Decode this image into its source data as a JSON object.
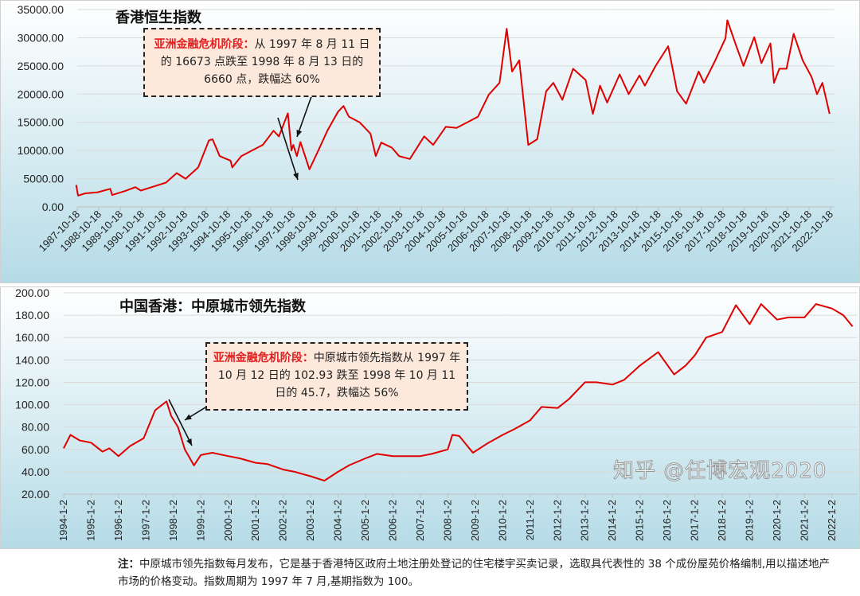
{
  "colors": {
    "line": "#e00000",
    "annotation_bg": "#fde9dc",
    "highlight": "#e02020",
    "bg_top": "#ffffff",
    "bg_bottom": "#b5dbe7"
  },
  "chart_data": [
    {
      "type": "line",
      "title": "香港恒生指数",
      "ylim": [
        0,
        35000
      ],
      "yticks": [
        "0.00",
        "5000.00",
        "10000.00",
        "15000.00",
        "20000.00",
        "25000.00",
        "30000.00",
        "35000.00"
      ],
      "ytick_values": [
        0,
        5000,
        10000,
        15000,
        20000,
        25000,
        30000,
        35000
      ],
      "xticks": [
        "1987-10-18",
        "1988-10-18",
        "1989-10-18",
        "1990-10-18",
        "1991-10-18",
        "1992-10-18",
        "1993-10-18",
        "1994-10-18",
        "1995-10-18",
        "1996-10-18",
        "1997-10-18",
        "1998-10-18",
        "1999-10-18",
        "2000-10-18",
        "2001-10-18",
        "2002-10-18",
        "2003-10-18",
        "2004-10-18",
        "2005-10-18",
        "2006-10-18",
        "2007-10-18",
        "2008-10-18",
        "2009-10-18",
        "2010-10-18",
        "2011-10-18",
        "2012-10-18",
        "2013-10-18",
        "2014-10-18",
        "2015-10-18",
        "2016-10-18",
        "2017-10-18",
        "2018-10-18",
        "2019-10-18",
        "2020-10-18",
        "2021-10-18",
        "2022-10-18"
      ],
      "grid": true,
      "annotation": {
        "highlight": "亚洲金融危机阶段：",
        "text": "从 1997 年 8 月 11 日的 16673 点跌至 1998 年 8 月 13 日的 6660 点，跌幅达 60%"
      },
      "series": [
        {
          "points": [
            [
              "1987-10",
              3900
            ],
            [
              "1987-11",
              2000
            ],
            [
              "1988-03",
              2400
            ],
            [
              "1988-10",
              2600
            ],
            [
              "1989-05",
              3200
            ],
            [
              "1989-06",
              2100
            ],
            [
              "1990-01",
              2800
            ],
            [
              "1990-07",
              3500
            ],
            [
              "1990-10",
              2900
            ],
            [
              "1991-03",
              3400
            ],
            [
              "1991-12",
              4300
            ],
            [
              "1992-06",
              6000
            ],
            [
              "1992-11",
              5000
            ],
            [
              "1993-06",
              7000
            ],
            [
              "1993-12",
              11800
            ],
            [
              "1994-02",
              12000
            ],
            [
              "1994-06",
              9000
            ],
            [
              "1994-12",
              8200
            ],
            [
              "1995-01",
              7000
            ],
            [
              "1995-06",
              9000
            ],
            [
              "1995-12",
              10000
            ],
            [
              "1996-06",
              11000
            ],
            [
              "1996-12",
              13500
            ],
            [
              "1997-03",
              12500
            ],
            [
              "1997-08",
              16600
            ],
            [
              "1997-10",
              10000
            ],
            [
              "1997-11",
              11000
            ],
            [
              "1998-01",
              9000
            ],
            [
              "1998-03",
              11500
            ],
            [
              "1998-08",
              6660
            ],
            [
              "1999-01",
              10000
            ],
            [
              "1999-06",
              13500
            ],
            [
              "1999-12",
              16900
            ],
            [
              "2000-03",
              17900
            ],
            [
              "2000-06",
              16000
            ],
            [
              "2000-12",
              15000
            ],
            [
              "2001-06",
              13000
            ],
            [
              "2001-09",
              9000
            ],
            [
              "2001-12",
              11400
            ],
            [
              "2002-06",
              10500
            ],
            [
              "2002-10",
              9000
            ],
            [
              "2003-04",
              8500
            ],
            [
              "2003-12",
              12500
            ],
            [
              "2004-05",
              11000
            ],
            [
              "2004-12",
              14200
            ],
            [
              "2005-06",
              14000
            ],
            [
              "2005-12",
              15000
            ],
            [
              "2006-06",
              16000
            ],
            [
              "2006-12",
              19900
            ],
            [
              "2007-06",
              22000
            ],
            [
              "2007-10",
              31600
            ],
            [
              "2008-01",
              24000
            ],
            [
              "2008-05",
              26000
            ],
            [
              "2008-10",
              11000
            ],
            [
              "2009-03",
              12000
            ],
            [
              "2009-08",
              20500
            ],
            [
              "2009-12",
              22000
            ],
            [
              "2010-05",
              19000
            ],
            [
              "2010-11",
              24500
            ],
            [
              "2011-06",
              22500
            ],
            [
              "2011-10",
              16500
            ],
            [
              "2012-02",
              21500
            ],
            [
              "2012-06",
              18500
            ],
            [
              "2013-01",
              23500
            ],
            [
              "2013-06",
              20000
            ],
            [
              "2013-12",
              23300
            ],
            [
              "2014-03",
              21500
            ],
            [
              "2014-09",
              25000
            ],
            [
              "2015-04",
              28500
            ],
            [
              "2015-09",
              20500
            ],
            [
              "2016-02",
              18300
            ],
            [
              "2016-09",
              24000
            ],
            [
              "2016-12",
              22000
            ],
            [
              "2017-06",
              25800
            ],
            [
              "2017-12",
              29900
            ],
            [
              "2018-01",
              33100
            ],
            [
              "2018-06",
              28500
            ],
            [
              "2018-10",
              25000
            ],
            [
              "2019-04",
              30100
            ],
            [
              "2019-08",
              25500
            ],
            [
              "2020-01",
              29000
            ],
            [
              "2020-03",
              22000
            ],
            [
              "2020-06",
              24500
            ],
            [
              "2020-10",
              24500
            ],
            [
              "2021-02",
              30700
            ],
            [
              "2021-07",
              26000
            ],
            [
              "2021-12",
              23000
            ],
            [
              "2022-03",
              20000
            ],
            [
              "2022-06",
              22000
            ],
            [
              "2022-10",
              16500
            ]
          ]
        }
      ]
    },
    {
      "type": "line",
      "title": "中国香港：中原城市领先指数",
      "ylim": [
        20,
        200
      ],
      "yticks": [
        "20.00",
        "40.00",
        "60.00",
        "80.00",
        "100.00",
        "120.00",
        "140.00",
        "160.00",
        "180.00",
        "200.00"
      ],
      "ytick_values": [
        20,
        40,
        60,
        80,
        100,
        120,
        140,
        160,
        180,
        200
      ],
      "xticks": [
        "1994-1-2",
        "1995-1-2",
        "1996-1-2",
        "1997-1-2",
        "1998-1-2",
        "1999-1-2",
        "2000-1-2",
        "2001-1-2",
        "2002-1-2",
        "2003-1-2",
        "2004-1-2",
        "2005-1-2",
        "2006-1-2",
        "2007-1-2",
        "2008-1-2",
        "2009-1-2",
        "2010-1-2",
        "2011-1-2",
        "2012-1-2",
        "2013-1-2",
        "2014-1-2",
        "2015-1-2",
        "2016-1-2",
        "2017-1-2",
        "2018-1-2",
        "2019-1-2",
        "2020-1-2",
        "2021-1-2",
        "2022-1-2"
      ],
      "grid": true,
      "annotation": {
        "highlight": "亚洲金融危机阶段：",
        "text": "中原城市领先指数从 1997 年 10 月 12 日的 102.93 跌至 1998 年 10 月 11 日的 45.7，跌幅达 56%"
      },
      "series": [
        {
          "points": [
            [
              "1994-01",
              61
            ],
            [
              "1994-04",
              73
            ],
            [
              "1994-08",
              68
            ],
            [
              "1995-01",
              66
            ],
            [
              "1995-06",
              58
            ],
            [
              "1995-09",
              61
            ],
            [
              "1996-01",
              54
            ],
            [
              "1996-06",
              63
            ],
            [
              "1996-12",
              70
            ],
            [
              "1997-05",
              95
            ],
            [
              "1997-10",
              102.93
            ],
            [
              "1997-12",
              90
            ],
            [
              "1998-03",
              80
            ],
            [
              "1998-06",
              60
            ],
            [
              "1998-10",
              45.7
            ],
            [
              "1999-01",
              55
            ],
            [
              "1999-06",
              57
            ],
            [
              "2000-01",
              54
            ],
            [
              "2000-06",
              52
            ],
            [
              "2001-01",
              48
            ],
            [
              "2001-06",
              47
            ],
            [
              "2002-01",
              42
            ],
            [
              "2002-06",
              40
            ],
            [
              "2003-01",
              36
            ],
            [
              "2003-07",
              32
            ],
            [
              "2004-01",
              40
            ],
            [
              "2004-06",
              46
            ],
            [
              "2005-01",
              52
            ],
            [
              "2005-06",
              56
            ],
            [
              "2006-01",
              54
            ],
            [
              "2006-06",
              54
            ],
            [
              "2007-01",
              54
            ],
            [
              "2007-06",
              56
            ],
            [
              "2008-01",
              60
            ],
            [
              "2008-03",
              73
            ],
            [
              "2008-06",
              72
            ],
            [
              "2008-12",
              57
            ],
            [
              "2009-06",
              65
            ],
            [
              "2010-01",
              73
            ],
            [
              "2010-06",
              78
            ],
            [
              "2011-01",
              86
            ],
            [
              "2011-06",
              98
            ],
            [
              "2012-01",
              97
            ],
            [
              "2012-06",
              105
            ],
            [
              "2013-01",
              120
            ],
            [
              "2013-06",
              120
            ],
            [
              "2014-01",
              118
            ],
            [
              "2014-06",
              122
            ],
            [
              "2015-01",
              135
            ],
            [
              "2015-09",
              147
            ],
            [
              "2016-04",
              127
            ],
            [
              "2016-09",
              135
            ],
            [
              "2017-01",
              144
            ],
            [
              "2017-06",
              160
            ],
            [
              "2018-01",
              165
            ],
            [
              "2018-07",
              189
            ],
            [
              "2019-01",
              172
            ],
            [
              "2019-06",
              190
            ],
            [
              "2020-01",
              176
            ],
            [
              "2020-06",
              178
            ],
            [
              "2021-01",
              178
            ],
            [
              "2021-06",
              190
            ],
            [
              "2022-01",
              186
            ],
            [
              "2022-06",
              180
            ],
            [
              "2022-10",
              170
            ]
          ]
        }
      ]
    }
  ],
  "note": {
    "label": "注：",
    "text": "中原城市领先指数每月发布，它是基于香港特区政府土地注册处登记的住宅楼宇买卖记录，选取具代表性的 38 个成份屋苑价格编制,用以描述地产市场的价格变动。指数周期为 1997 年 7 月,基期指数为 100。"
  },
  "watermark": "知乎 @任博宏观2020"
}
